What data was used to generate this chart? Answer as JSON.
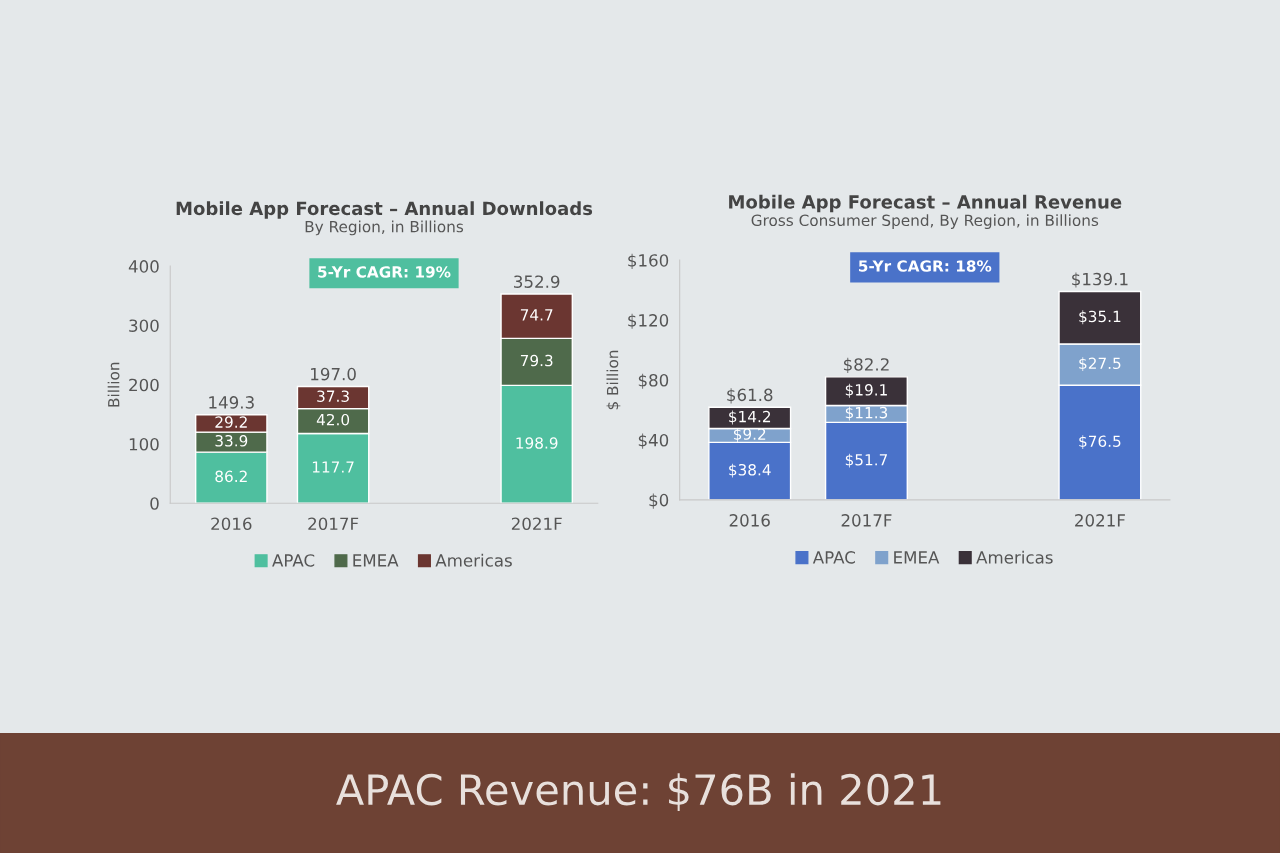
{
  "chart_data": [
    {
      "type": "bar",
      "stacked": true,
      "title": "Mobile App Forecast – Annual Downloads",
      "subtitle": "By Region, in Billions",
      "ylabel": "Billion",
      "categories": [
        "2016",
        "2017F",
        null,
        "2021F"
      ],
      "series": [
        {
          "name": "APAC",
          "color": "#4fbf9f",
          "values": [
            86.2,
            117.7,
            null,
            198.9
          ]
        },
        {
          "name": "EMEA",
          "color": "#4f6a4b",
          "values": [
            33.9,
            42.0,
            null,
            79.3
          ],
          "value_labels": [
            "33.9",
            "42.0",
            null,
            "79.3"
          ]
        },
        {
          "name": "Americas",
          "color": "#6b3631",
          "values": [
            29.2,
            37.3,
            null,
            74.7
          ]
        }
      ],
      "data_labels": true,
      "totals": [
        "149.3",
        "197.0",
        null,
        "352.9"
      ],
      "ylim": [
        0,
        400
      ],
      "yticks": [
        0,
        100,
        200,
        300,
        400
      ],
      "grid": false,
      "legend": "bottom",
      "annotations": [
        "5-Yr CAGR: 19%"
      ]
    },
    {
      "type": "bar",
      "stacked": true,
      "title": "Mobile App Forecast – Annual Revenue",
      "subtitle": "Gross Consumer Spend, By Region, in Billions",
      "ylabel": "$ Billion",
      "categories": [
        "2016",
        "2017F",
        null,
        "2021F"
      ],
      "series": [
        {
          "name": "APAC",
          "color": "#4a72c9",
          "values": [
            38.4,
            51.7,
            null,
            76.5
          ],
          "value_labels": [
            "$38.4",
            "$51.7",
            null,
            "$76.5"
          ]
        },
        {
          "name": "EMEA",
          "color": "#7fa2cc",
          "values": [
            9.2,
            11.3,
            null,
            27.5
          ],
          "value_labels": [
            "$9.2",
            "$11.3",
            null,
            "$27.5"
          ]
        },
        {
          "name": "Americas",
          "color": "#3a3139",
          "values": [
            14.2,
            19.1,
            null,
            35.1
          ],
          "value_labels": [
            "$14.2",
            "$19.1",
            null,
            "$35.1"
          ]
        }
      ],
      "totals": [
        "$61.8",
        "$82.2",
        null,
        "$139.1"
      ],
      "ylim": [
        0,
        160
      ],
      "yticks": [
        {
          "value": 0,
          "label": "$0"
        },
        {
          "value": 40,
          "label": "$40"
        },
        {
          "value": 80,
          "label": "$80"
        },
        {
          "value": 120,
          "label": "$120"
        },
        {
          "value": 160,
          "label": "$160"
        }
      ],
      "grid": false,
      "legend": "bottom",
      "annotations": [
        "5-Yr CAGR: 18%",
        "APAC Revenue: $76B in 2021"
      ]
    }
  ]
}
